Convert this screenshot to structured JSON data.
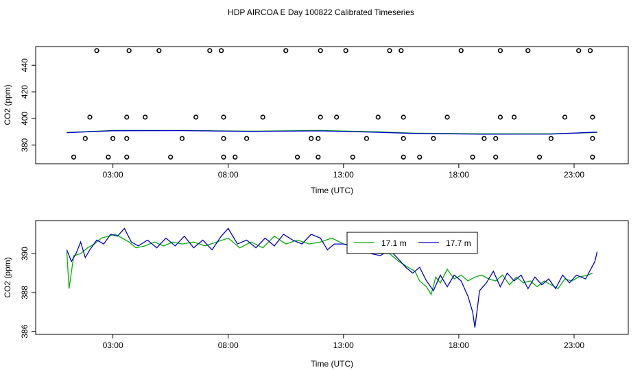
{
  "title": "HDP AIRCOA E  Day 100822  Calibrated Timeseries",
  "colors": {
    "green": "#00b000",
    "blue": "#0000cc",
    "black": "#000000"
  },
  "chart_data": [
    {
      "type": "scatter",
      "xlabel": "Time (UTC)",
      "ylabel": "CO2 (ppm)",
      "xticks": [
        3,
        8,
        13,
        18,
        23
      ],
      "xtick_labels": [
        "03:00",
        "08:00",
        "13:00",
        "18:00",
        "23:00"
      ],
      "yticks": [
        380,
        400,
        420,
        440
      ],
      "xlim": [
        -0.35,
        25.35
      ],
      "ylim": [
        366,
        454
      ],
      "points": [
        [
          1.3,
          371
        ],
        [
          2.3,
          451
        ],
        [
          2.0,
          401
        ],
        [
          1.8,
          385
        ],
        [
          2.8,
          371
        ],
        [
          3.0,
          385
        ],
        [
          3.7,
          451
        ],
        [
          3.6,
          401
        ],
        [
          3.6,
          385
        ],
        [
          3.6,
          371
        ],
        [
          4.4,
          401
        ],
        [
          5.0,
          451
        ],
        [
          5.5,
          371
        ],
        [
          6.0,
          385
        ],
        [
          6.6,
          401
        ],
        [
          7.2,
          451
        ],
        [
          7.7,
          451
        ],
        [
          7.8,
          401
        ],
        [
          7.8,
          385
        ],
        [
          7.8,
          371
        ],
        [
          8.3,
          371
        ],
        [
          8.8,
          385
        ],
        [
          9.5,
          401
        ],
        [
          10.5,
          451
        ],
        [
          11.0,
          371
        ],
        [
          11.6,
          385
        ],
        [
          12.0,
          451
        ],
        [
          12.0,
          401
        ],
        [
          11.9,
          385
        ],
        [
          11.9,
          371
        ],
        [
          12.7,
          401
        ],
        [
          13.1,
          451
        ],
        [
          13.4,
          371
        ],
        [
          14.0,
          385
        ],
        [
          14.5,
          401
        ],
        [
          15.0,
          451
        ],
        [
          15.5,
          451
        ],
        [
          15.6,
          401
        ],
        [
          15.6,
          385
        ],
        [
          15.6,
          371
        ],
        [
          16.3,
          371
        ],
        [
          16.9,
          385
        ],
        [
          17.5,
          401
        ],
        [
          18.1,
          451
        ],
        [
          18.6,
          371
        ],
        [
          19.1,
          385
        ],
        [
          19.6,
          371
        ],
        [
          19.6,
          385
        ],
        [
          19.8,
          451
        ],
        [
          19.8,
          401
        ],
        [
          20.4,
          401
        ],
        [
          21.0,
          451
        ],
        [
          21.5,
          371
        ],
        [
          22.0,
          385
        ],
        [
          22.6,
          401
        ],
        [
          23.2,
          451
        ],
        [
          23.7,
          451
        ],
        [
          23.8,
          401
        ],
        [
          23.8,
          385
        ],
        [
          23.8,
          371
        ]
      ],
      "series": [
        {
          "color": "green",
          "values": [
            [
              1.0,
              389.5
            ],
            [
              3.0,
              391.0
            ],
            [
              6.0,
              391.0
            ],
            [
              9.0,
              390.5
            ],
            [
              12.0,
              391.0
            ],
            [
              14.5,
              390.0
            ],
            [
              16.0,
              389.0
            ],
            [
              19.0,
              388.5
            ],
            [
              22.0,
              388.5
            ],
            [
              24.0,
              389.5
            ]
          ]
        },
        {
          "color": "blue",
          "values": [
            [
              1.0,
              389.3
            ],
            [
              3.0,
              390.8
            ],
            [
              6.0,
              390.9
            ],
            [
              9.0,
              390.3
            ],
            [
              12.0,
              390.7
            ],
            [
              14.5,
              389.6
            ],
            [
              16.0,
              388.8
            ],
            [
              19.0,
              388.2
            ],
            [
              22.0,
              388.3
            ],
            [
              24.0,
              389.8
            ]
          ]
        }
      ]
    },
    {
      "type": "line",
      "xlabel": "Time (UTC)",
      "ylabel": "CO2 (ppm)",
      "xticks": [
        3,
        8,
        13,
        18,
        23
      ],
      "xtick_labels": [
        "03:00",
        "08:00",
        "13:00",
        "18:00",
        "23:00"
      ],
      "yticks": [
        386,
        388,
        390
      ],
      "xlim": [
        -0.35,
        25.35
      ],
      "ylim": [
        385.85,
        391.7
      ],
      "legend_position": "top-center",
      "series": [
        {
          "name": "17.1 m",
          "color": "green",
          "values": [
            [
              1.0,
              390.1
            ],
            [
              1.1,
              388.2
            ],
            [
              1.3,
              389.9
            ],
            [
              1.6,
              390.0
            ],
            [
              1.9,
              390.3
            ],
            [
              2.2,
              390.5
            ],
            [
              2.5,
              390.8
            ],
            [
              2.8,
              390.9
            ],
            [
              3.1,
              391.0
            ],
            [
              3.4,
              390.8
            ],
            [
              3.7,
              390.6
            ],
            [
              4.0,
              390.3
            ],
            [
              4.4,
              390.4
            ],
            [
              4.8,
              390.6
            ],
            [
              5.2,
              390.4
            ],
            [
              5.6,
              390.6
            ],
            [
              6.0,
              390.5
            ],
            [
              6.5,
              390.6
            ],
            [
              7.0,
              390.4
            ],
            [
              7.5,
              390.6
            ],
            [
              8.0,
              390.8
            ],
            [
              8.5,
              390.3
            ],
            [
              9.0,
              390.6
            ],
            [
              9.5,
              390.3
            ],
            [
              10.0,
              390.9
            ],
            [
              10.5,
              390.5
            ],
            [
              11.0,
              390.7
            ],
            [
              11.5,
              390.5
            ],
            [
              12.0,
              390.6
            ],
            [
              12.5,
              390.8
            ],
            [
              13.0,
              390.5
            ],
            [
              13.5,
              390.4
            ],
            [
              14.0,
              390.2
            ],
            [
              14.5,
              390.0
            ],
            [
              15.0,
              390.0
            ],
            [
              15.4,
              389.6
            ],
            [
              15.8,
              389.3
            ],
            [
              16.1,
              389.1
            ],
            [
              16.3,
              388.6
            ],
            [
              16.6,
              388.3
            ],
            [
              16.8,
              387.9
            ],
            [
              17.0,
              388.8
            ],
            [
              17.2,
              388.5
            ],
            [
              17.5,
              389.2
            ],
            [
              17.8,
              388.7
            ],
            [
              18.1,
              388.9
            ],
            [
              18.4,
              388.6
            ],
            [
              18.7,
              388.8
            ],
            [
              19.0,
              388.9
            ],
            [
              19.3,
              388.7
            ],
            [
              19.6,
              388.6
            ],
            [
              19.9,
              388.9
            ],
            [
              20.2,
              388.4
            ],
            [
              20.5,
              388.8
            ],
            [
              20.8,
              388.5
            ],
            [
              21.1,
              388.6
            ],
            [
              21.4,
              388.3
            ],
            [
              21.7,
              388.6
            ],
            [
              22.0,
              388.4
            ],
            [
              22.3,
              388.2
            ],
            [
              22.6,
              388.7
            ],
            [
              22.9,
              388.6
            ],
            [
              23.2,
              388.8
            ],
            [
              23.6,
              388.9
            ],
            [
              23.8,
              389.0
            ]
          ]
        },
        {
          "name": "17.7 m",
          "color": "blue",
          "values": [
            [
              1.0,
              390.2
            ],
            [
              1.2,
              389.6
            ],
            [
              1.4,
              390.0
            ],
            [
              1.6,
              390.6
            ],
            [
              1.8,
              389.8
            ],
            [
              2.0,
              390.2
            ],
            [
              2.3,
              390.7
            ],
            [
              2.6,
              390.5
            ],
            [
              2.9,
              391.0
            ],
            [
              3.2,
              390.9
            ],
            [
              3.5,
              391.3
            ],
            [
              3.8,
              390.6
            ],
            [
              4.1,
              390.4
            ],
            [
              4.5,
              390.7
            ],
            [
              4.9,
              390.3
            ],
            [
              5.3,
              390.8
            ],
            [
              5.7,
              390.4
            ],
            [
              6.1,
              390.9
            ],
            [
              6.5,
              390.3
            ],
            [
              6.9,
              390.7
            ],
            [
              7.3,
              390.2
            ],
            [
              7.7,
              390.9
            ],
            [
              8.0,
              391.3
            ],
            [
              8.4,
              390.5
            ],
            [
              8.8,
              390.7
            ],
            [
              9.2,
              390.3
            ],
            [
              9.6,
              390.8
            ],
            [
              10.0,
              390.4
            ],
            [
              10.4,
              391.0
            ],
            [
              10.8,
              390.7
            ],
            [
              11.2,
              390.5
            ],
            [
              11.6,
              391.0
            ],
            [
              12.0,
              390.8
            ],
            [
              12.3,
              390.2
            ],
            [
              12.6,
              390.5
            ],
            [
              13.0,
              390.5
            ],
            [
              13.4,
              390.4
            ],
            [
              13.8,
              390.1
            ],
            [
              14.2,
              390.0
            ],
            [
              14.6,
              389.9
            ],
            [
              15.0,
              390.2
            ],
            [
              15.4,
              389.7
            ],
            [
              15.7,
              389.3
            ],
            [
              16.0,
              389.0
            ],
            [
              16.3,
              389.3
            ],
            [
              16.6,
              388.6
            ],
            [
              16.9,
              388.1
            ],
            [
              17.2,
              388.9
            ],
            [
              17.5,
              388.3
            ],
            [
              17.8,
              388.9
            ],
            [
              18.1,
              388.6
            ],
            [
              18.4,
              387.8
            ],
            [
              18.6,
              387.0
            ],
            [
              18.7,
              386.2
            ],
            [
              18.9,
              388.1
            ],
            [
              19.2,
              388.5
            ],
            [
              19.5,
              389.1
            ],
            [
              19.8,
              388.3
            ],
            [
              20.1,
              389.0
            ],
            [
              20.4,
              388.6
            ],
            [
              20.7,
              388.9
            ],
            [
              21.0,
              388.2
            ],
            [
              21.3,
              388.8
            ],
            [
              21.6,
              388.4
            ],
            [
              21.9,
              388.7
            ],
            [
              22.2,
              388.2
            ],
            [
              22.5,
              388.9
            ],
            [
              22.8,
              388.5
            ],
            [
              23.1,
              388.9
            ],
            [
              23.5,
              388.7
            ],
            [
              23.9,
              389.6
            ],
            [
              24.0,
              390.1
            ]
          ]
        }
      ]
    }
  ]
}
